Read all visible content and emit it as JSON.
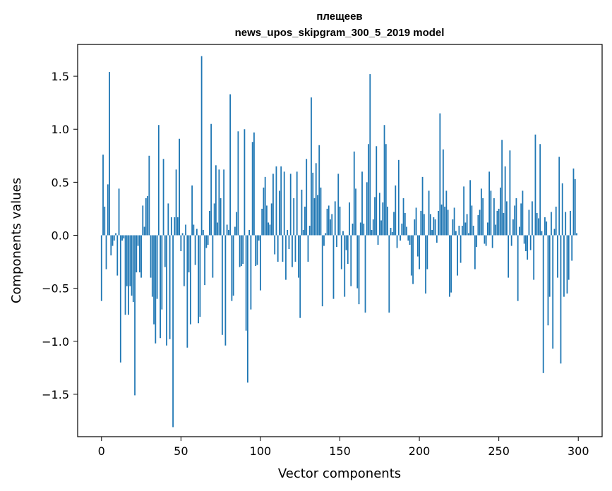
{
  "chart_data": {
    "type": "bar",
    "title_lines": [
      "плещеев",
      "news_upos_skipgram_300_5_2019 model"
    ],
    "xlabel": "Vector components",
    "ylabel": "Components values",
    "xlim": [
      -15,
      315
    ],
    "ylim": [
      -1.9,
      1.8
    ],
    "xticks": [
      0,
      50,
      100,
      150,
      200,
      250,
      300
    ],
    "xtick_labels": [
      "0",
      "50",
      "100",
      "150",
      "200",
      "250",
      "300"
    ],
    "yticks": [
      -1.5,
      -1.0,
      -0.5,
      0.0,
      0.5,
      1.0,
      1.5
    ],
    "ytick_labels": [
      "−1.5",
      "−1.0",
      "−0.5",
      "0.0",
      "0.5",
      "1.0",
      "1.5"
    ],
    "bar_color": "#1f77b4",
    "grid": false,
    "legend": "none",
    "series": [
      {
        "values": [
          -0.62,
          0.76,
          0.27,
          -0.32,
          0.48,
          1.54,
          -0.19,
          -0.1,
          -0.05,
          0.02,
          -0.38,
          0.44,
          -1.2,
          -0.05,
          -0.03,
          -0.75,
          -0.48,
          -0.75,
          -0.48,
          -0.57,
          -0.63,
          -1.51,
          -0.35,
          -0.1,
          -0.35,
          -0.4,
          0.28,
          0.08,
          0.35,
          0.37,
          0.75,
          -0.4,
          -0.58,
          -0.84,
          -1.02,
          -0.6,
          1.04,
          -0.97,
          -0.7,
          0.72,
          -0.3,
          -1.04,
          0.3,
          -0.98,
          0.17,
          -1.81,
          0.17,
          0.62,
          0.17,
          0.91,
          -0.15,
          0.02,
          -0.48,
          0.1,
          -1.06,
          -0.35,
          -0.84,
          0.47,
          0.1,
          -0.28,
          0.06,
          -0.83,
          -0.77,
          1.69,
          0.05,
          -0.47,
          -0.12,
          -0.09,
          0.23,
          1.05,
          -0.4,
          0.3,
          0.66,
          0.12,
          0.62,
          0.35,
          -0.94,
          0.62,
          -1.04,
          0.1,
          0.05,
          1.33,
          -0.62,
          -0.57,
          0.08,
          0.22,
          0.98,
          -0.3,
          -0.29,
          -0.27,
          1.0,
          -0.9,
          -1.39,
          0.05,
          -0.7,
          0.88,
          0.97,
          -0.29,
          -0.28,
          -0.05,
          -0.52,
          0.25,
          0.45,
          0.55,
          0.28,
          0.12,
          0.1,
          0.3,
          0.58,
          -0.18,
          0.65,
          -0.25,
          0.42,
          0.65,
          -0.25,
          0.6,
          -0.42,
          0.05,
          -0.13,
          0.58,
          -0.3,
          0.35,
          -0.25,
          0.6,
          -0.4,
          -0.78,
          0.43,
          0.05,
          0.27,
          0.72,
          -0.25,
          0.09,
          1.3,
          0.59,
          0.35,
          0.68,
          0.38,
          0.85,
          0.45,
          -0.67,
          -0.1,
          0.02,
          0.25,
          0.28,
          0.15,
          0.2,
          -0.6,
          0.32,
          -0.11,
          0.58,
          0.27,
          -0.32,
          0.04,
          -0.58,
          -0.14,
          -0.27,
          0.31,
          -0.48,
          0.11,
          0.79,
          0.44,
          -0.5,
          -0.65,
          0.12,
          0.6,
          0.11,
          -0.73,
          0.5,
          0.86,
          1.52,
          0.05,
          0.15,
          0.36,
          0.84,
          -0.09,
          0.4,
          0.14,
          0.31,
          1.04,
          0.86,
          0.27,
          -0.73,
          0.07,
          0.03,
          0.22,
          0.47,
          -0.12,
          0.71,
          -0.05,
          0.11,
          0.35,
          0.21,
          0.08,
          -0.05,
          -0.09,
          -0.38,
          -0.46,
          0.15,
          0.26,
          -0.2,
          -0.32,
          0.23,
          0.55,
          0.2,
          -0.55,
          -0.32,
          0.42,
          0.2,
          0.05,
          0.17,
          0.15,
          -0.07,
          0.23,
          1.15,
          0.29,
          0.81,
          0.27,
          0.42,
          0.24,
          -0.58,
          -0.54,
          0.15,
          0.26,
          0.04,
          -0.38,
          0.09,
          -0.26,
          0.09,
          0.46,
          0.12,
          0.2,
          0.02,
          0.52,
          0.28,
          0.09,
          -0.32,
          -0.11,
          0.19,
          0.24,
          0.44,
          0.35,
          -0.08,
          -0.1,
          0.12,
          0.6,
          0.42,
          -0.12,
          0.35,
          0.1,
          0.23,
          0.25,
          0.45,
          0.9,
          0.21,
          0.65,
          0.32,
          -0.4,
          0.8,
          -0.1,
          0.15,
          0.28,
          0.35,
          -0.62,
          0.08,
          0.3,
          0.42,
          -0.08,
          -0.15,
          -0.23,
          0.24,
          -0.14,
          0.32,
          -0.42,
          0.95,
          0.21,
          0.16,
          0.86,
          0.04,
          -1.3,
          0.17,
          0.13,
          -0.85,
          -0.58,
          0.22,
          -1.07,
          0.06,
          0.27,
          -0.4,
          0.74,
          -1.21,
          0.49,
          -0.58,
          0.22,
          -0.55,
          -0.42,
          0.23,
          -0.24,
          0.63,
          0.53,
          0.02
        ]
      }
    ]
  }
}
